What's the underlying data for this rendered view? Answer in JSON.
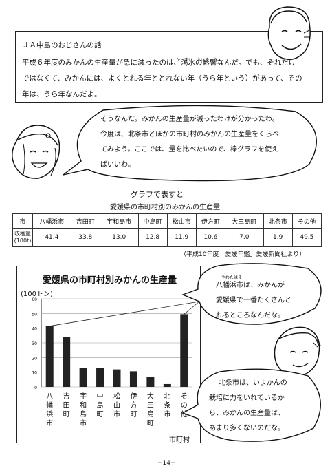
{
  "intro": {
    "title": "ＪＡ中島のおじさんの話",
    "lines": [
      "平成６年度のみかんの生産量が急に減ったのは、渇水の影響なんだ。でも、それだけ",
      "ではなくて、みかんには、よくとれる年ととれない年（うら年という）があって、その",
      "年は、うら年なんだよ。"
    ],
    "ruby_kassui": "かっすい",
    "ruby_eikyou": "えいきょう"
  },
  "girl_speech": [
    "そうなんだ。みかんの生産量が減ったわけが分かったわ。",
    "今度は、北条市とほかの市町村のみかんの生産量をくらべ",
    "てみよう。ここでは、量を比べたいので、棒グラフを使え",
    "ばいいわ。"
  ],
  "graph_heading": "グラフで表すと",
  "table_title": "愛媛県の市町村別のみかんの生産量",
  "table": {
    "header": [
      "市",
      "八幡浜市",
      "吉田町",
      "宇和島市",
      "中島町",
      "松山市",
      "伊方町",
      "大三島町",
      "北条市",
      "その他"
    ],
    "row_label_1": "収穫量",
    "row_label_2": "(100t)",
    "values": [
      "41.4",
      "33.8",
      "13.0",
      "12.8",
      "11.9",
      "10.6",
      "7.0",
      "1.9",
      "49.5"
    ]
  },
  "source": "（平成10年度「愛媛年鑑」愛媛新聞社より）",
  "chart_data": {
    "type": "bar",
    "title": "愛媛県の市町村別みかんの生産量",
    "ylabel": "(100トン)",
    "xlabel": "市町村",
    "ylim": [
      0,
      60
    ],
    "yticks": [
      "0",
      "10",
      "20",
      "30",
      "40",
      "50",
      "60"
    ],
    "categories": [
      "八幡浜市",
      "吉田町",
      "宇和島市",
      "中島町",
      "松山市",
      "伊方町",
      "大三島町",
      "北条市",
      "その他"
    ],
    "values": [
      41.4,
      33.8,
      13.0,
      12.8,
      11.9,
      10.6,
      7.0,
      1.9,
      49.5
    ]
  },
  "right_speech_1": [
    "八幡浜市は、みかんが",
    "愛媛県で一番たくさんと",
    "れるところなんだな。"
  ],
  "ruby_yawatahama": "やわたはま",
  "right_speech_2": [
    "北条市は、いよかんの",
    "栽培に力をいれているか",
    "ら、みかんの生産量は、",
    "あまり多くないのだな。"
  ],
  "page_number": "−14−"
}
